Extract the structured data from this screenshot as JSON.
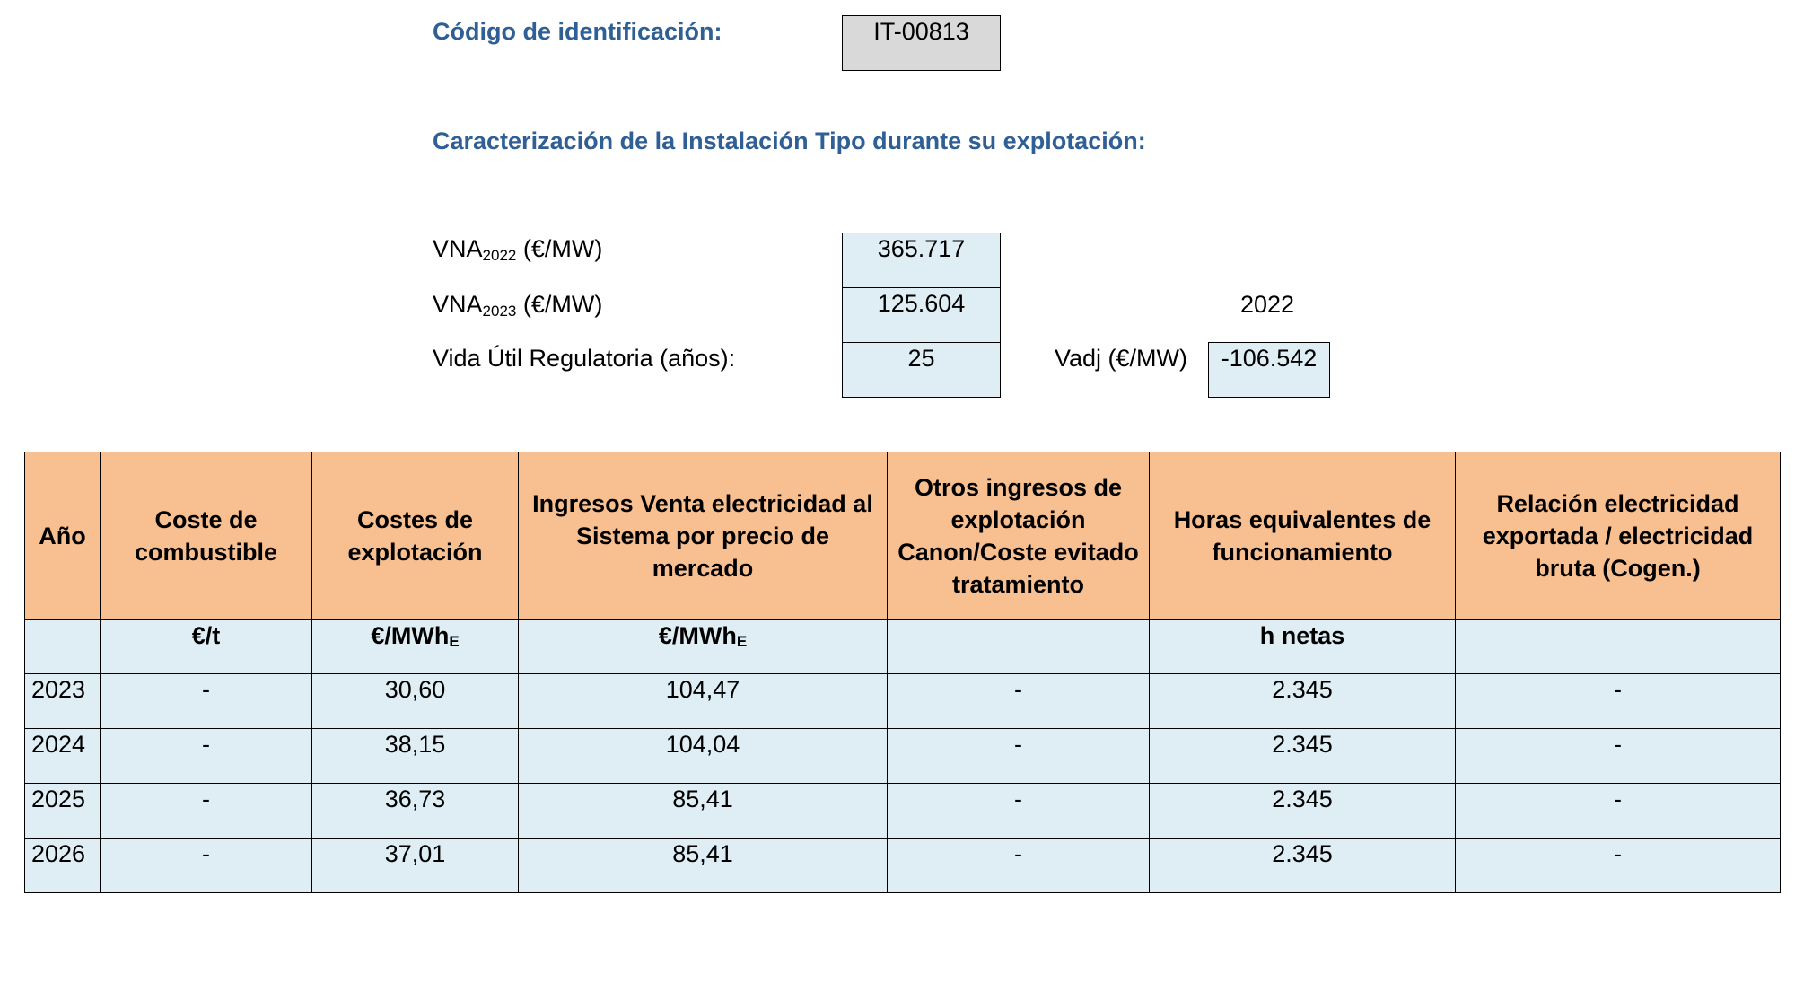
{
  "header": {
    "codigo_label": "Código de identificación:",
    "codigo_value": "IT-00813",
    "caracterizacion_title": "Caracterización de la Instalación Tipo durante su explotación:"
  },
  "params": {
    "vna2022_label_main": "VNA",
    "vna2022_label_sub": "2022",
    "vna2022_label_unit": " (€/MW)",
    "vna2022_value": "365.717",
    "vna2023_label_main": "VNA",
    "vna2023_label_sub": "2023",
    "vna2023_label_unit": " (€/MW)",
    "vna2023_value": "125.604",
    "vida_label": "Vida Útil Regulatoria (años):",
    "vida_value": "25",
    "year_ref": "2022",
    "vadj_label": "Vadj (€/MW)",
    "vadj_value": "-106.542"
  },
  "table": {
    "headers": [
      "Año",
      "Coste de combustible",
      "Costes de explotación",
      "Ingresos Venta electricidad al Sistema por precio de mercado",
      "Otros ingresos de explotación Canon/Coste evitado tratamiento",
      "Horas equivalentes de funcionamiento",
      "Relación electricidad exportada / electricidad bruta (Cogen.)"
    ],
    "units": {
      "col0": "",
      "col1": "€/t",
      "col2_main": "€/MWh",
      "col2_sub": "E",
      "col3_main": "€/MWh",
      "col3_sub": "E",
      "col4": "",
      "col5": "h netas",
      "col6": ""
    },
    "rows": [
      [
        "2023",
        "-",
        "30,60",
        "104,47",
        "-",
        "2.345",
        "-"
      ],
      [
        "2024",
        "-",
        "38,15",
        "104,04",
        "-",
        "2.345",
        "-"
      ],
      [
        "2025",
        "-",
        "36,73",
        "85,41",
        "-",
        "2.345",
        "-"
      ],
      [
        "2026",
        "-",
        "37,01",
        "85,41",
        "-",
        "2.345",
        "-"
      ]
    ]
  }
}
